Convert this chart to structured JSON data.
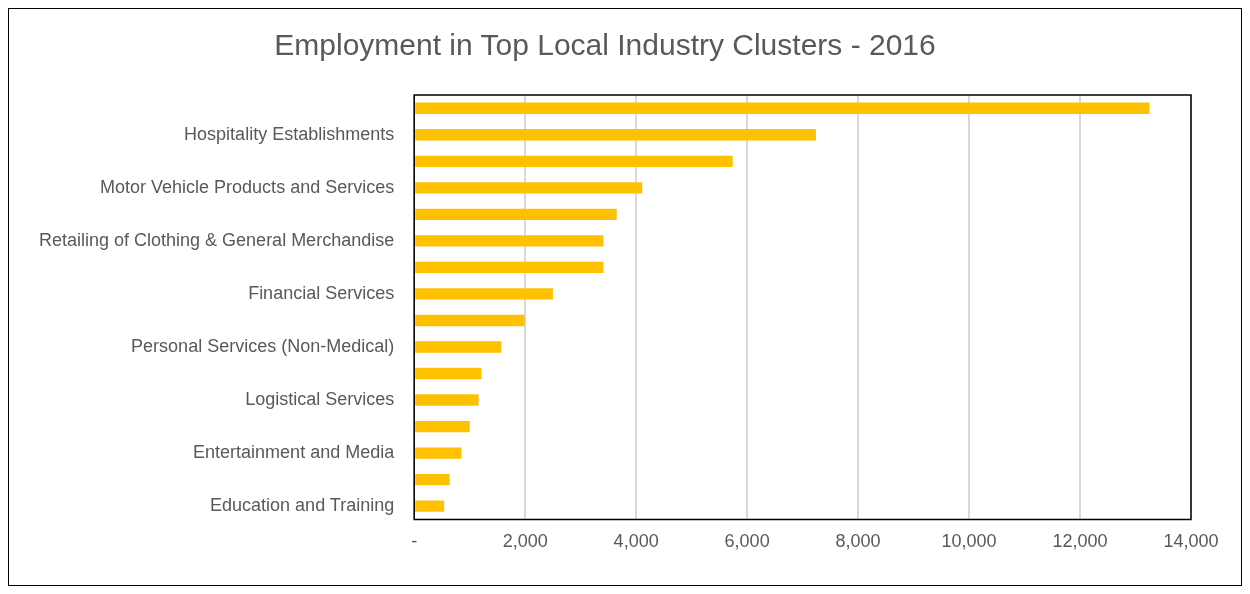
{
  "chart_data": {
    "type": "bar",
    "orientation": "horizontal",
    "title": "Employment in Top Local Industry Clusters - 2016",
    "categories": [
      null,
      "Hospitality Establishments",
      null,
      "Motor Vehicle Products and Services",
      null,
      "Retailing of Clothing & General Merchandise",
      null,
      "Financial Services",
      null,
      "Personal Services (Non-Medical)",
      null,
      "Logistical Services",
      null,
      "Entertainment and Media",
      null,
      "Education and Training"
    ],
    "values": [
      13250,
      7240,
      5740,
      4110,
      3650,
      3410,
      3410,
      2500,
      1990,
      1570,
      1210,
      1160,
      1000,
      850,
      640,
      540
    ],
    "color": "#ffc000",
    "xlim": [
      0,
      14000
    ],
    "xticks": [
      {
        "value": 0,
        "label": "-"
      },
      {
        "value": 2000,
        "label": "2,000"
      },
      {
        "value": 4000,
        "label": "4,000"
      },
      {
        "value": 6000,
        "label": "6,000"
      },
      {
        "value": 8000,
        "label": "8,000"
      },
      {
        "value": 10000,
        "label": "10,000"
      },
      {
        "value": 12000,
        "label": "12,000"
      },
      {
        "value": 14000,
        "label": "14,000"
      }
    ],
    "grid": "x",
    "legend": false
  }
}
